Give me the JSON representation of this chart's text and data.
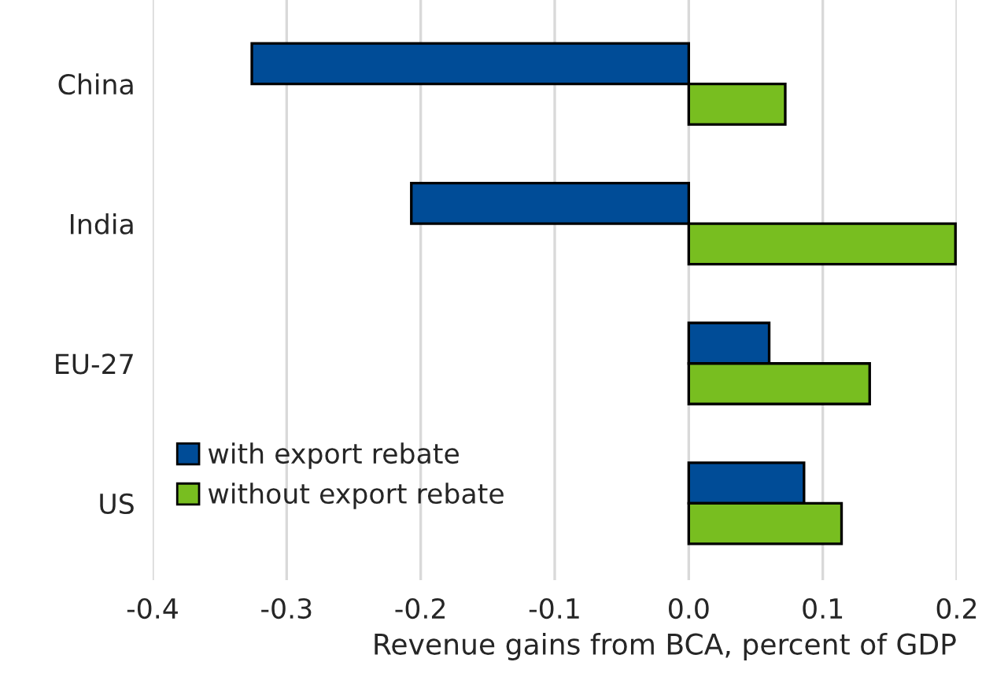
{
  "chart_data": {
    "type": "bar",
    "orientation": "horizontal",
    "categories": [
      "China",
      "India",
      "EU-27",
      "US"
    ],
    "series": [
      {
        "name": "with export rebate",
        "color": "#004c97",
        "values": [
          -0.326,
          -0.207,
          0.06,
          0.086
        ]
      },
      {
        "name": "without export rebate",
        "color": "#78be20",
        "values": [
          0.072,
          0.199,
          0.135,
          0.114
        ]
      }
    ],
    "xlabel": "Revenue gains from BCA, percent of GDP",
    "xlim": [
      -0.4,
      0.2
    ],
    "xticks": [
      {
        "value": -0.4,
        "label": "-0.4"
      },
      {
        "value": -0.3,
        "label": "-0.3"
      },
      {
        "value": -0.2,
        "label": "-0.2"
      },
      {
        "value": -0.1,
        "label": "-0.1"
      },
      {
        "value": 0,
        "label": "0.0"
      },
      {
        "value": 0.1,
        "label": "0.1"
      },
      {
        "value": 0.2,
        "label": "0.2"
      }
    ],
    "grid": "x",
    "legend": "bottom left"
  }
}
